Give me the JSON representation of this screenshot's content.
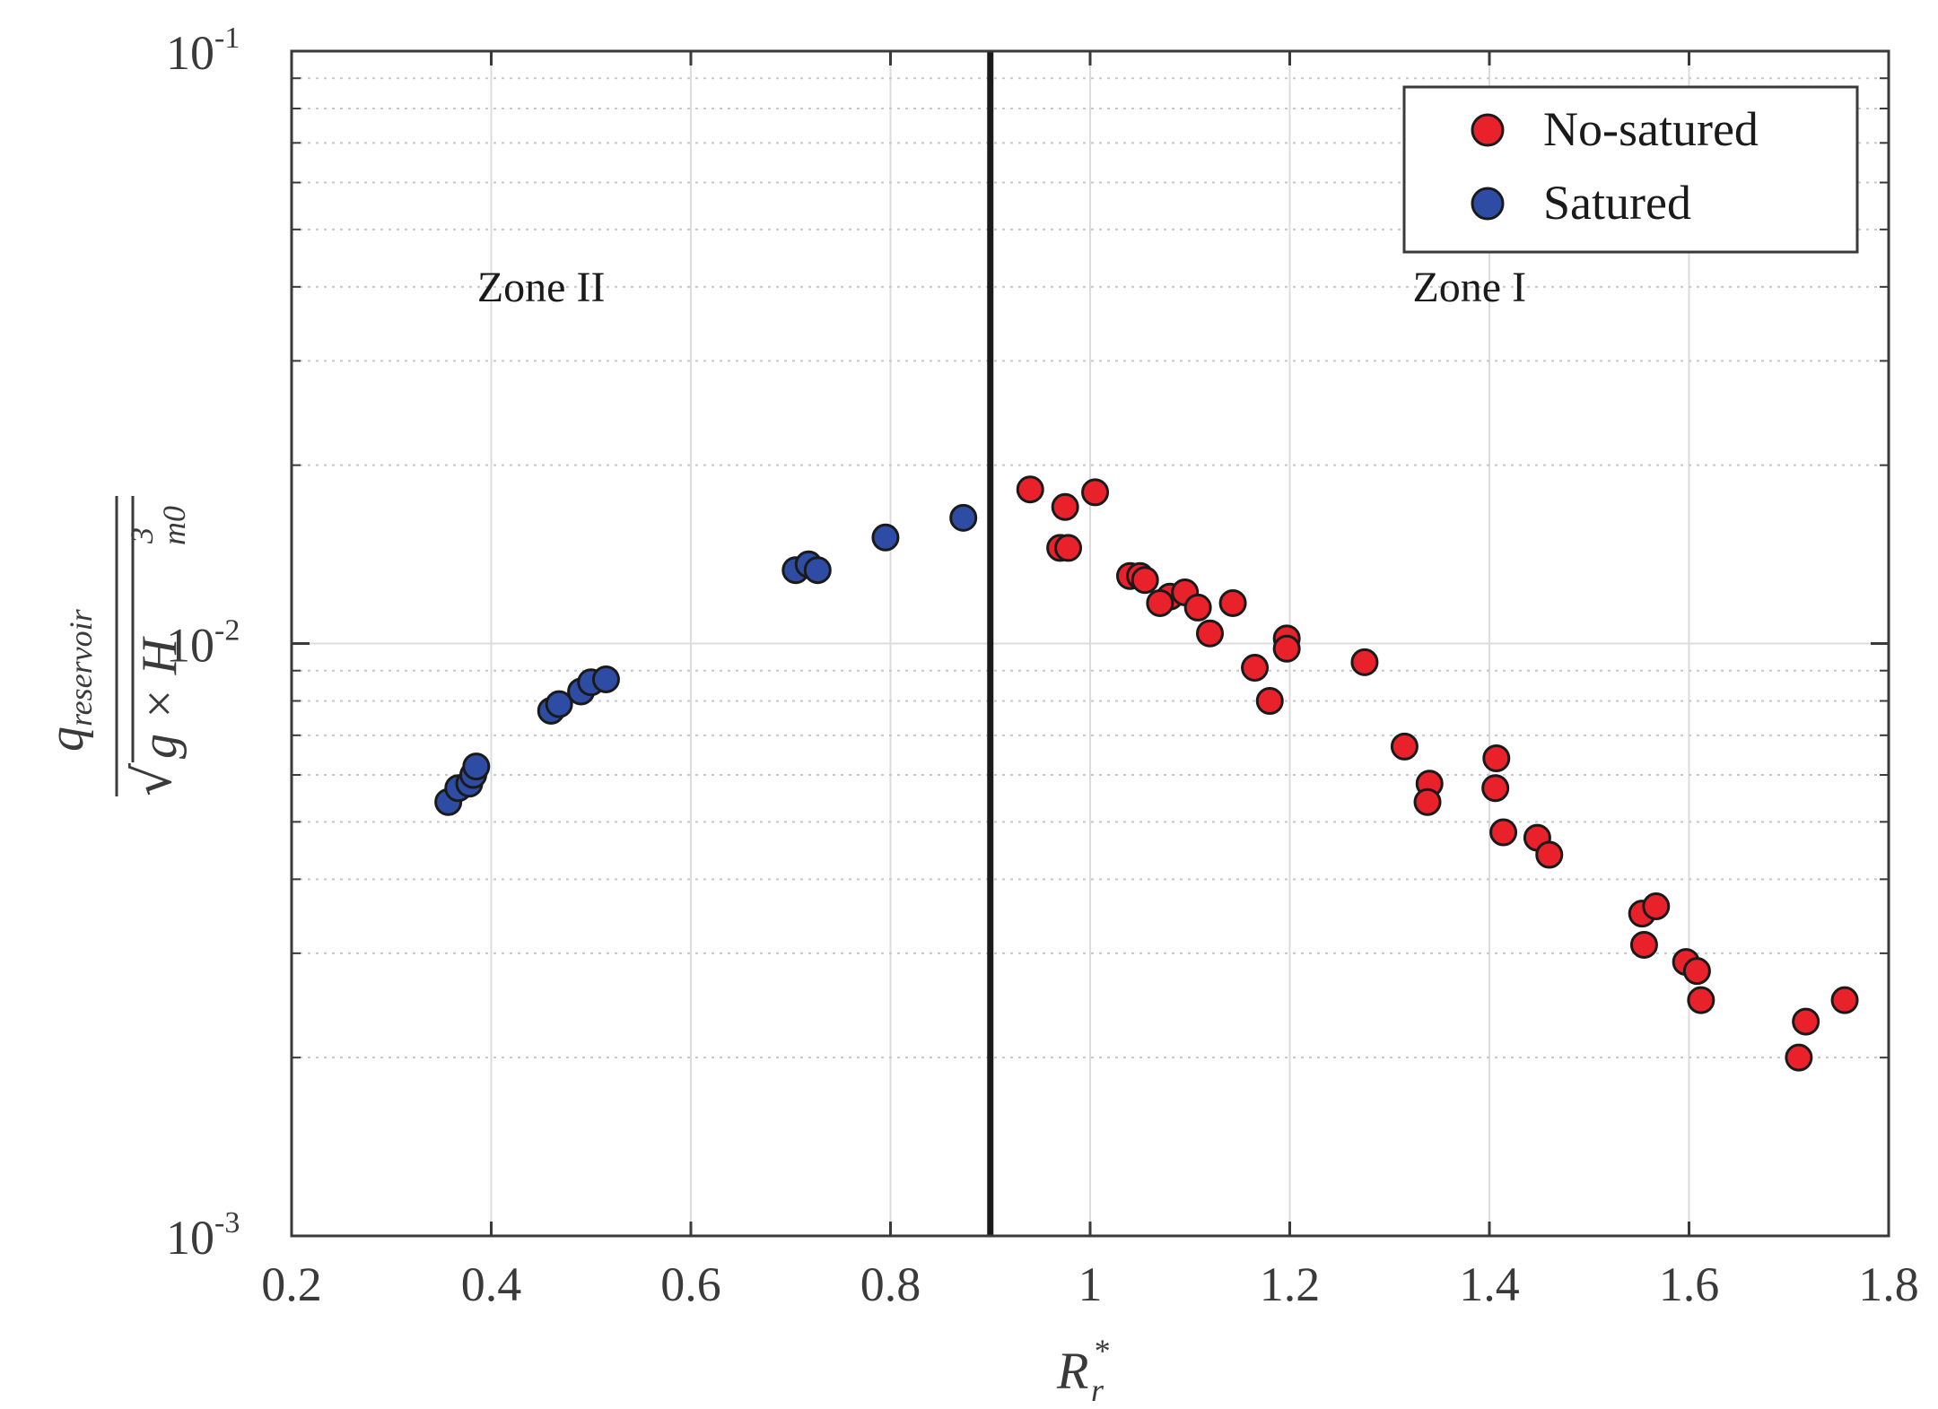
{
  "chart_data": {
    "type": "scatter",
    "xlabel": "R_r^*",
    "ylabel": "q_reservoir / sqrt(g × H_m0^3)",
    "xlim": [
      0.2,
      1.8
    ],
    "ylim": [
      0.001,
      0.1
    ],
    "yscale": "log",
    "grid": true,
    "legend_position": "top-right",
    "x_ticks": [
      "0.2",
      "0.4",
      "0.6",
      "0.8",
      "1",
      "1.2",
      "1.4",
      "1.6",
      "1.8"
    ],
    "y_ticks": [
      {
        "base": "10",
        "exp": "-3"
      },
      {
        "base": "10",
        "exp": "-2"
      },
      {
        "base": "10",
        "exp": "-1"
      }
    ],
    "ylabel_parts": {
      "q": "q",
      "q_sub": "reservoir",
      "den": "g × H",
      "den_sup": "3",
      "den_sub": "m0"
    },
    "xlabel_parts": {
      "base": "R",
      "sup": "*",
      "sub": "r"
    },
    "threshold_x": 0.9,
    "annotations": [
      {
        "text": "Zone II",
        "x": 0.45,
        "y": 0.04
      },
      {
        "text": "Zone I",
        "x": 1.38,
        "y": 0.04
      }
    ],
    "series": [
      {
        "name": "No-satured",
        "color": "#e8212b",
        "points": [
          [
            0.94,
            0.0182
          ],
          [
            0.975,
            0.017
          ],
          [
            1.005,
            0.018
          ],
          [
            0.97,
            0.0145
          ],
          [
            0.978,
            0.0145
          ],
          [
            1.04,
            0.013
          ],
          [
            1.05,
            0.013
          ],
          [
            1.055,
            0.0128
          ],
          [
            1.08,
            0.012
          ],
          [
            1.07,
            0.0117
          ],
          [
            1.095,
            0.0122
          ],
          [
            1.108,
            0.0115
          ],
          [
            1.143,
            0.0117
          ],
          [
            1.12,
            0.0104
          ],
          [
            1.165,
            0.0091
          ],
          [
            1.18,
            0.008
          ],
          [
            1.197,
            0.0102
          ],
          [
            1.197,
            0.0098
          ],
          [
            1.275,
            0.0093
          ],
          [
            1.315,
            0.0067
          ],
          [
            1.34,
            0.0058
          ],
          [
            1.338,
            0.0054
          ],
          [
            1.407,
            0.0064
          ],
          [
            1.406,
            0.0057
          ],
          [
            1.414,
            0.0048
          ],
          [
            1.448,
            0.0047
          ],
          [
            1.46,
            0.0044
          ],
          [
            1.553,
            0.0035
          ],
          [
            1.555,
            0.0031
          ],
          [
            1.567,
            0.0036
          ],
          [
            1.597,
            0.0029
          ],
          [
            1.608,
            0.0028
          ],
          [
            1.612,
            0.0025
          ],
          [
            1.71,
            0.002
          ],
          [
            1.717,
            0.0023
          ],
          [
            1.756,
            0.0025
          ]
        ]
      },
      {
        "name": "Satured",
        "color": "#2e4ca3",
        "points": [
          [
            0.357,
            0.0054
          ],
          [
            0.367,
            0.0057
          ],
          [
            0.378,
            0.0058
          ],
          [
            0.382,
            0.006
          ],
          [
            0.385,
            0.0062
          ],
          [
            0.46,
            0.0077
          ],
          [
            0.468,
            0.0079
          ],
          [
            0.49,
            0.0083
          ],
          [
            0.5,
            0.0086
          ],
          [
            0.515,
            0.0087
          ],
          [
            0.705,
            0.0133
          ],
          [
            0.718,
            0.0136
          ],
          [
            0.727,
            0.0133
          ],
          [
            0.795,
            0.0151
          ],
          [
            0.873,
            0.0163
          ]
        ]
      }
    ]
  }
}
